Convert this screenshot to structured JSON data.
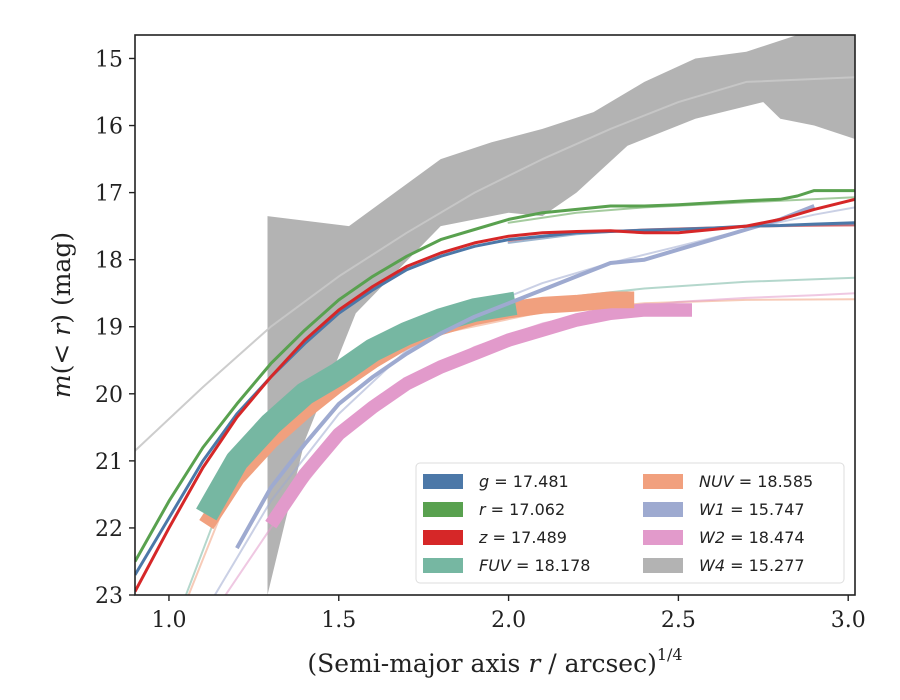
{
  "chart_data": {
    "type": "line",
    "xlabel": "(Semi-major axis r / arcsec)",
    "xlabel_sup": "1/4",
    "ylabel": "m(< r) (mag)",
    "xlim": [
      0.9,
      3.02
    ],
    "ylim": [
      23,
      14.65
    ],
    "y_inverted": true,
    "grid": false,
    "legend_position": "lower-right",
    "legend_columns": 2,
    "x_ticks": [
      1.0,
      1.5,
      2.0,
      2.5,
      3.0
    ],
    "x_tick_labels": [
      "1.0",
      "1.5",
      "2.0",
      "2.5",
      "3.0"
    ],
    "y_ticks": [
      15,
      16,
      17,
      18,
      19,
      20,
      21,
      22,
      23
    ],
    "y_tick_labels": [
      "15",
      "16",
      "17",
      "18",
      "19",
      "20",
      "21",
      "22",
      "23"
    ],
    "series": [
      {
        "name": "g",
        "label_value": "17.481",
        "color": "#4c78a8",
        "band_width": 0.04,
        "x": [
          0.9,
          1.0,
          1.1,
          1.2,
          1.3,
          1.4,
          1.5,
          1.6,
          1.7,
          1.8,
          1.9,
          2.0,
          2.1,
          2.2,
          2.3,
          2.4,
          2.5,
          2.6,
          2.7,
          2.8,
          2.9,
          3.02
        ],
        "y": [
          22.7,
          21.85,
          21.0,
          20.3,
          19.75,
          19.25,
          18.8,
          18.45,
          18.15,
          17.95,
          17.8,
          17.7,
          17.65,
          17.6,
          17.58,
          17.56,
          17.55,
          17.53,
          17.5,
          17.49,
          17.47,
          17.45
        ],
        "model": {
          "x": [
            2.0,
            2.2,
            2.4,
            2.6,
            2.8,
            3.02
          ],
          "y": [
            17.75,
            17.62,
            17.55,
            17.52,
            17.49,
            17.48
          ]
        }
      },
      {
        "name": "r",
        "label_value": "17.062",
        "color": "#59a14f",
        "band_width": 0.04,
        "x": [
          0.9,
          1.0,
          1.1,
          1.2,
          1.3,
          1.4,
          1.5,
          1.6,
          1.7,
          1.8,
          1.9,
          2.0,
          2.1,
          2.2,
          2.3,
          2.4,
          2.5,
          2.6,
          2.7,
          2.8,
          2.85,
          2.9,
          3.02
        ],
        "y": [
          22.5,
          21.6,
          20.8,
          20.15,
          19.55,
          19.05,
          18.6,
          18.25,
          17.95,
          17.7,
          17.55,
          17.4,
          17.3,
          17.25,
          17.2,
          17.2,
          17.18,
          17.15,
          17.12,
          17.1,
          17.05,
          16.97,
          16.97
        ],
        "model": {
          "x": [
            2.0,
            2.2,
            2.4,
            2.6,
            2.8,
            3.02
          ],
          "y": [
            17.45,
            17.3,
            17.22,
            17.17,
            17.12,
            17.07
          ]
        }
      },
      {
        "name": "z",
        "label_value": "17.489",
        "color": "#d62728",
        "band_width": 0.04,
        "x": [
          0.9,
          1.0,
          1.1,
          1.2,
          1.3,
          1.4,
          1.5,
          1.6,
          1.7,
          1.8,
          1.9,
          2.0,
          2.1,
          2.2,
          2.3,
          2.4,
          2.5,
          2.6,
          2.7,
          2.8,
          2.9,
          3.02
        ],
        "y": [
          22.95,
          22.0,
          21.1,
          20.35,
          19.75,
          19.2,
          18.75,
          18.4,
          18.1,
          17.9,
          17.75,
          17.65,
          17.6,
          17.58,
          17.57,
          17.6,
          17.6,
          17.55,
          17.5,
          17.4,
          17.25,
          17.1
        ],
        "model": {
          "x": [
            2.0,
            2.2,
            2.4,
            2.6,
            2.8,
            3.02
          ],
          "y": [
            17.72,
            17.6,
            17.55,
            17.52,
            17.5,
            17.49
          ]
        }
      },
      {
        "name": "FUV",
        "label_value": "18.178",
        "color": "#76b7a2",
        "band_width": 0.35,
        "x": [
          1.11,
          1.2,
          1.3,
          1.4,
          1.5,
          1.6,
          1.7,
          1.8,
          1.9,
          2.02
        ],
        "y": [
          21.8,
          21.0,
          20.45,
          20.0,
          19.7,
          19.35,
          19.1,
          18.9,
          18.75,
          18.65
        ],
        "model": {
          "x": [
            0.9,
            1.2,
            1.5,
            1.8,
            2.1,
            2.4,
            2.7,
            3.02
          ],
          "y": [
            25.0,
            21.0,
            19.55,
            18.95,
            18.6,
            18.43,
            18.33,
            18.27
          ]
        }
      },
      {
        "name": "NUV",
        "label_value": "18.585",
        "color": "#f1a07e",
        "band_width": 0.25,
        "x": [
          1.11,
          1.2,
          1.3,
          1.4,
          1.5,
          1.6,
          1.7,
          1.8,
          1.9,
          2.0,
          2.1,
          2.2,
          2.3,
          2.37
        ],
        "y": [
          21.95,
          21.25,
          20.7,
          20.25,
          19.85,
          19.5,
          19.2,
          19.0,
          18.85,
          18.75,
          18.68,
          18.65,
          18.6,
          18.6
        ],
        "model": {
          "x": [
            0.9,
            1.2,
            1.5,
            1.8,
            2.1,
            2.4,
            2.7,
            3.02
          ],
          "y": [
            25.0,
            21.2,
            19.8,
            19.1,
            18.78,
            18.65,
            18.6,
            18.59
          ]
        }
      },
      {
        "name": "W1",
        "label_value": "15.747",
        "color": "#9eaad0",
        "band_width": 0.06,
        "x": [
          1.2,
          1.3,
          1.4,
          1.5,
          1.6,
          1.7,
          1.8,
          1.9,
          2.0,
          2.1,
          2.2,
          2.3,
          2.4,
          2.5,
          2.6,
          2.7,
          2.8,
          2.9
        ],
        "y": [
          22.3,
          21.4,
          20.75,
          20.15,
          19.75,
          19.4,
          19.1,
          18.85,
          18.65,
          18.45,
          18.25,
          18.05,
          18.0,
          17.85,
          17.7,
          17.55,
          17.4,
          17.2
        ],
        "model": {
          "x": [
            1.1,
            1.3,
            1.5,
            1.7,
            1.9,
            2.1,
            2.3,
            2.5,
            2.7,
            2.9,
            3.02
          ],
          "y": [
            23.3,
            21.6,
            20.3,
            19.35,
            18.75,
            18.35,
            18.05,
            17.8,
            17.55,
            17.33,
            17.22
          ]
        }
      },
      {
        "name": "W2",
        "label_value": "18.474",
        "color": "#e29acb",
        "band_width": 0.2,
        "x": [
          1.3,
          1.4,
          1.5,
          1.6,
          1.7,
          1.8,
          1.9,
          2.0,
          2.1,
          2.2,
          2.3,
          2.4,
          2.54
        ],
        "y": [
          21.95,
          21.2,
          20.6,
          20.2,
          19.85,
          19.6,
          19.4,
          19.2,
          19.05,
          18.9,
          18.8,
          18.75,
          18.75
        ],
        "model": {
          "x": [
            1.1,
            1.3,
            1.5,
            1.7,
            1.9,
            2.1,
            2.3,
            2.5,
            2.7,
            2.9,
            3.02
          ],
          "y": [
            23.5,
            22.0,
            20.7,
            19.85,
            19.3,
            18.95,
            18.75,
            18.63,
            18.57,
            18.53,
            18.5
          ]
        }
      }
    ],
    "w4": {
      "name": "W4",
      "label_value": "15.277",
      "color": "#b3b3b3",
      "upper_x": [
        1.29,
        1.53,
        1.8,
        1.95,
        2.1,
        2.25,
        2.4,
        2.55,
        2.7,
        2.85,
        3.02
      ],
      "upper_y": [
        17.35,
        17.5,
        16.5,
        16.25,
        16.05,
        15.8,
        15.35,
        15.0,
        14.9,
        14.65,
        14.65
      ],
      "lower_x": [
        3.02,
        2.9,
        2.8,
        2.75,
        2.55,
        2.35,
        2.2,
        2.1,
        2.0,
        1.8,
        1.55,
        1.4,
        1.29
      ],
      "lower_y": [
        16.2,
        16.0,
        15.9,
        15.65,
        15.9,
        16.3,
        17.0,
        17.35,
        17.3,
        17.5,
        18.8,
        20.7,
        23.0
      ],
      "model": {
        "x": [
          0.9,
          1.1,
          1.3,
          1.5,
          1.7,
          1.9,
          2.1,
          2.3,
          2.5,
          2.7,
          3.02
        ],
        "y": [
          20.85,
          19.9,
          19.0,
          18.25,
          17.6,
          17.0,
          16.5,
          16.05,
          15.65,
          15.35,
          15.28
        ]
      }
    }
  }
}
